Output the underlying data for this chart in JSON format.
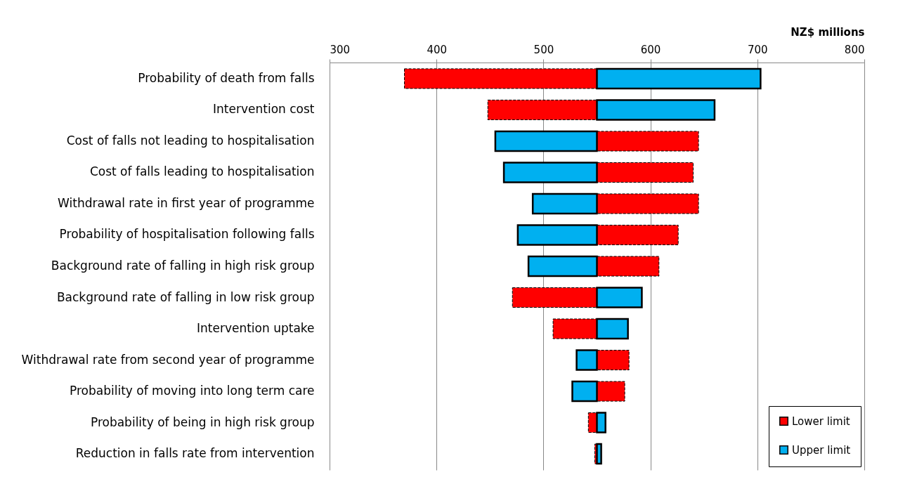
{
  "chart_data": {
    "type": "bar",
    "orientation": "horizontal",
    "xlabel": "NZ$ millions",
    "categories": [
      "Probability of death from falls",
      "Intervention cost",
      "Cost of falls not leading to hospitalisation",
      "Cost of falls  leading to hospitalisation",
      "Withdrawal rate in first year of programme",
      "Probability of hospitalisation following falls",
      "Background rate of falling in high risk group",
      "Background rate of falling in low risk group",
      "Intervention uptake",
      "Withdrawal rate from second year of programme",
      "Probability of moving into long term care",
      "Probability of being in high risk group",
      "Reduction in falls rate from intervention"
    ],
    "series": [
      {
        "name": "Lower limit",
        "color": "#ff0000",
        "line_style": "dashed",
        "base": [
          370,
          448,
          550,
          550,
          550,
          550,
          550,
          471,
          509,
          550,
          550,
          542,
          548
        ],
        "values": [
          180,
          102,
          95,
          90,
          95,
          76,
          58,
          79,
          41,
          30,
          26,
          8,
          2
        ]
      },
      {
        "name": "Upper limit",
        "color": "#00b0f0",
        "line_style": "solid",
        "base": [
          550,
          550,
          455,
          463,
          490,
          476,
          486,
          550,
          550,
          531,
          527,
          550,
          550
        ],
        "values": [
          153,
          110,
          95,
          87,
          60,
          74,
          64,
          42,
          29,
          19,
          23,
          8,
          4
        ]
      }
    ],
    "xlim": [
      300,
      800
    ],
    "xticks": [
      300,
      400,
      500,
      600,
      700,
      800
    ],
    "grid": "x",
    "legend": "bottom right"
  }
}
